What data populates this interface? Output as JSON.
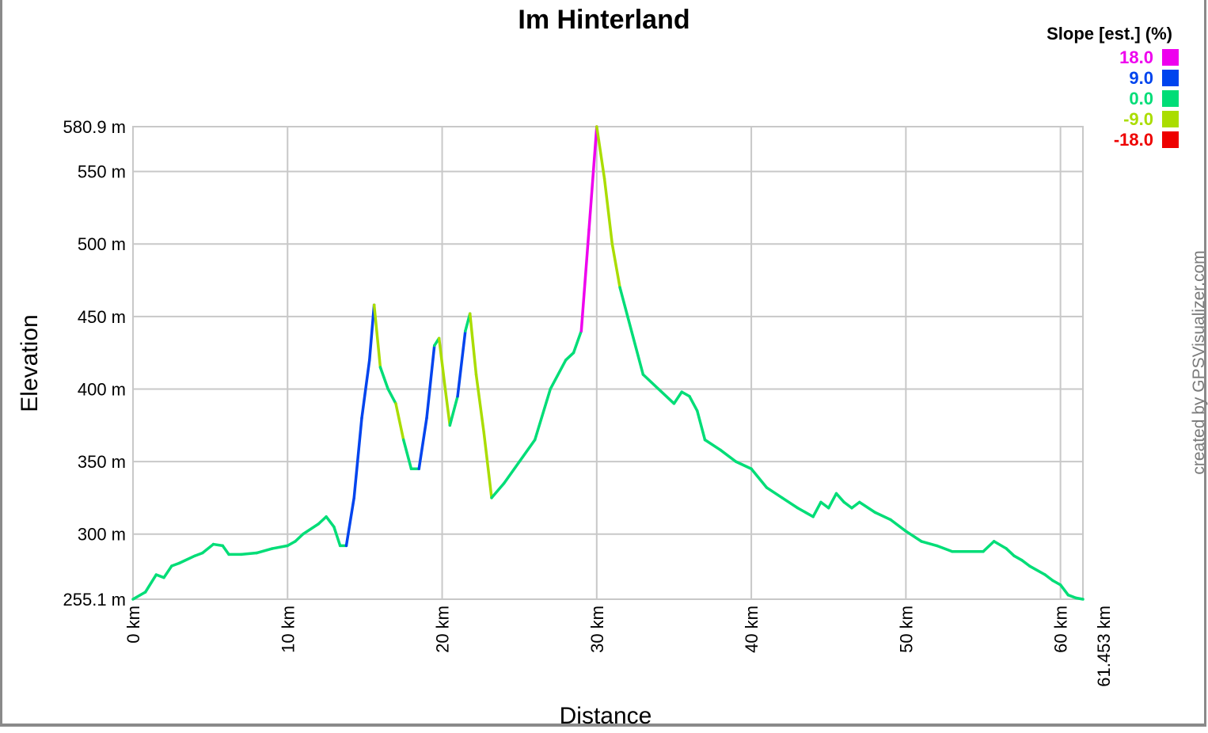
{
  "chart_data": {
    "type": "line",
    "title": "Im Hinterland",
    "xlabel": "Distance",
    "ylabel": "Elevation",
    "xlim": [
      0,
      61.453
    ],
    "ylim": [
      255.1,
      580.9
    ],
    "grid": true,
    "x_ticks": [
      {
        "value": 0,
        "label": "0 km"
      },
      {
        "value": 10,
        "label": "10 km"
      },
      {
        "value": 20,
        "label": "20 km"
      },
      {
        "value": 30,
        "label": "30 km"
      },
      {
        "value": 40,
        "label": "40 km"
      },
      {
        "value": 50,
        "label": "50 km"
      },
      {
        "value": 60,
        "label": "60 km"
      },
      {
        "value": 61.453,
        "label": "61.453 km"
      }
    ],
    "y_ticks": [
      {
        "value": 255.1,
        "label": "255.1 m"
      },
      {
        "value": 300,
        "label": "300 m"
      },
      {
        "value": 350,
        "label": "350 m"
      },
      {
        "value": 400,
        "label": "400 m"
      },
      {
        "value": 450,
        "label": "450 m"
      },
      {
        "value": 500,
        "label": "500 m"
      },
      {
        "value": 550,
        "label": "550 m"
      },
      {
        "value": 580.9,
        "label": "580.9 m"
      }
    ],
    "legend": {
      "title": "Slope [est.] (%)",
      "placement": "top-right",
      "entries": [
        {
          "label": "18.0",
          "color": "#ee00ee"
        },
        {
          "label": "9.0",
          "color": "#0044ee"
        },
        {
          "label": "0.0",
          "color": "#00dd77"
        },
        {
          "label": "-9.0",
          "color": "#aadd00"
        },
        {
          "label": "-18.0",
          "color": "#ee0000"
        }
      ]
    },
    "series": [
      {
        "x": [
          0,
          0.8,
          1.5,
          2.0,
          2.5,
          3.0,
          4.0,
          4.5,
          5.2,
          5.8,
          6.2,
          7.0,
          8.0,
          9.0,
          10.0,
          10.5,
          11.0,
          12.0,
          12.5,
          13.0,
          13.4,
          13.8,
          14.3,
          14.8,
          15.3,
          15.6,
          16.0,
          16.5,
          17.0,
          17.5,
          18.0,
          18.5,
          19.0,
          19.5,
          19.8,
          20.2,
          20.5,
          21.0,
          21.5,
          21.8,
          22.2,
          22.7,
          23.2,
          24.0,
          25.0,
          26.0,
          27.0,
          28.0,
          28.5,
          29.0,
          29.5,
          30.0,
          30.5,
          31.0,
          31.5,
          32.0,
          33.0,
          34.0,
          35.0,
          35.5,
          36.0,
          36.5,
          37.0,
          38.0,
          39.0,
          40.0,
          41.0,
          42.0,
          43.0,
          44.0,
          44.5,
          45.0,
          45.5,
          46.0,
          46.5,
          47.0,
          48.0,
          49.0,
          50.0,
          51.0,
          52.0,
          53.0,
          54.0,
          55.0,
          55.7,
          56.5,
          57.0,
          57.5,
          58.0,
          59.0,
          59.5,
          60.0,
          60.5,
          61.0,
          61.453
        ],
        "y": [
          255.1,
          260,
          272,
          270,
          278,
          280,
          285,
          287,
          293,
          292,
          286,
          286,
          287,
          290,
          292,
          295,
          300,
          307,
          312,
          305,
          292,
          292,
          325,
          380,
          420,
          458,
          415,
          400,
          390,
          365,
          345,
          345,
          380,
          430,
          435,
          400,
          375,
          395,
          440,
          452,
          410,
          370,
          325,
          335,
          350,
          365,
          400,
          420,
          425,
          440,
          510,
          580.9,
          545,
          500,
          470,
          450,
          410,
          400,
          390,
          398,
          395,
          385,
          365,
          358,
          350,
          345,
          332,
          325,
          318,
          312,
          322,
          318,
          328,
          322,
          318,
          322,
          315,
          310,
          302,
          295,
          292,
          288,
          288,
          288,
          295,
          290,
          285,
          282,
          278,
          272,
          268,
          265,
          258,
          256,
          255.1
        ]
      }
    ],
    "credit": "created by GPSVisualizer.com"
  }
}
